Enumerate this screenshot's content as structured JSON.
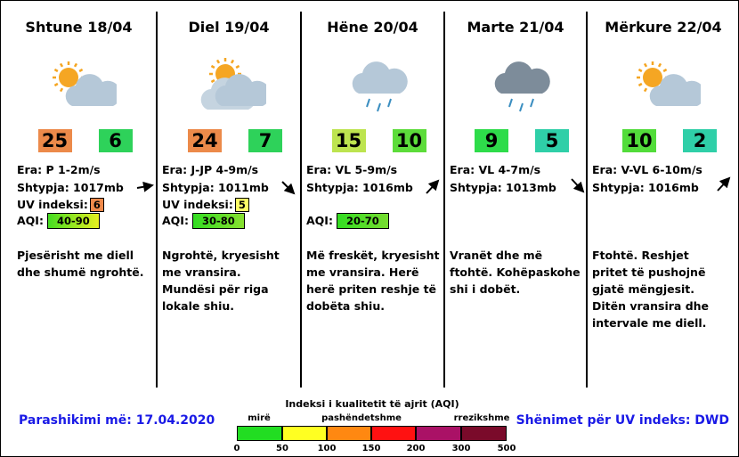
{
  "days": [
    {
      "title": "Shtune 18/04",
      "icon": "sun-cloud",
      "high": {
        "text": "25",
        "color": "#ec8a4a"
      },
      "low": {
        "text": "6",
        "color": "#2ed25a"
      },
      "wind": "Era: P 1-2m/s",
      "pressure": "Shtypja: 1017mb",
      "uv": {
        "text": "6",
        "color": "#f08a4b"
      },
      "aqi": {
        "text": "40-90",
        "color": "linear-gradient(90deg,#44dd22,#e8f020)"
      },
      "description": "Pjesërisht me diell dhe shumë ngrohtë."
    },
    {
      "title": "Diel 19/04",
      "icon": "sun-cloud-big",
      "high": {
        "text": "24",
        "color": "#ec8a4a"
      },
      "low": {
        "text": "7",
        "color": "#2ed25a"
      },
      "wind": "Era: J-JP 4-9m/s",
      "pressure": "Shtypja: 1011mb",
      "uv": {
        "text": "5",
        "color": "#ffff66"
      },
      "aqi": {
        "text": "30-80",
        "color": "linear-gradient(90deg,#33dd22,#88e030)"
      },
      "description": "Ngrohtë, kryesisht me vransira.  Mundësi për riga lokale shiu."
    },
    {
      "title": "Hëne 20/04",
      "icon": "rain",
      "high": {
        "text": "15",
        "color": "#bde44f"
      },
      "low": {
        "text": "10",
        "color": "#5cdc3a"
      },
      "wind": "Era: VL 5-9m/s",
      "pressure": "Shtypja: 1016mb",
      "aqi": {
        "text": "20-70",
        "color": "linear-gradient(90deg,#33dd22,#77dd30)"
      },
      "description": "Më freskët, kryesisht me vransira.  Herë herë priten reshje të dobëta shiu."
    },
    {
      "title": "Marte 21/04",
      "icon": "dark-rain",
      "high": {
        "text": "9",
        "color": "#2edc4a"
      },
      "low": {
        "text": "5",
        "color": "#2fcfa8"
      },
      "wind": "Era: VL 4-7m/s",
      "pressure": "Shtypja: 1013mb",
      "description": "Vranët dhe më ftohtë. Kohëpaskohe shi i dobët."
    },
    {
      "title": "Mërkure 22/04",
      "icon": "sun-cloud",
      "high": {
        "text": "10",
        "color": "#52dc3a"
      },
      "low": {
        "text": "2",
        "color": "#2fcfa8"
      },
      "wind": "Era: V-VL 6-10m/s",
      "pressure": "Shtypja: 1016mb",
      "description": "Ftohtë.  Reshjet pritet të pushojnë gjatë mëngjesit.  Ditën vransira dhe intervale me diell."
    }
  ],
  "uv_label": "UV indeksi:",
  "aqi_label": "AQI:",
  "footer": {
    "forecast_date": "Parashikimi më: 17.04.2020",
    "uv_source": "Shënimet për UV indeks: DWD"
  },
  "aqi_legend": {
    "title": "Indeksi i kualitetit të ajrit (AQI)",
    "categories": [
      "mirë",
      "pashëndetshme",
      "rrezikshme"
    ],
    "ticks": [
      "0",
      "50",
      "100",
      "150",
      "200",
      "300",
      "500"
    ],
    "colors": [
      "#22dd22",
      "#ffff22",
      "#ff8811",
      "#ff1111",
      "#aa1166",
      "#7a0a2a"
    ]
  }
}
